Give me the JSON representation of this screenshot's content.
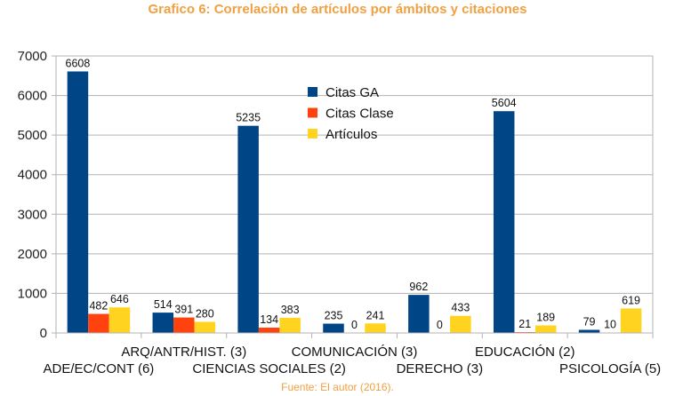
{
  "title": "Grafico 6: Correlación de artículos por ámbitos y citaciones",
  "source": "Fuente: El autor (2016).",
  "colors": {
    "citas_ga": "#004586",
    "citas_clase": "#ff420e",
    "articulos": "#ffd320",
    "title": "#f0a040"
  },
  "chart_data": {
    "type": "bar",
    "categories": [
      "ADE/EC/CONT (6)",
      "ARQ/ANTR/HIST. (3)",
      "CIENCIAS SOCIALES (2)",
      "COMUNICACIÓN (3)",
      "DERECHO (3)",
      "EDUCACIÓN (2)",
      "PSICOLOGÍA (5)"
    ],
    "series": [
      {
        "name": "Citas GA",
        "values": [
          6608,
          514,
          5235,
          235,
          962,
          5604,
          79
        ]
      },
      {
        "name": "Citas Clase",
        "values": [
          482,
          391,
          134,
          0,
          0,
          21,
          10
        ]
      },
      {
        "name": "Artículos",
        "values": [
          646,
          280,
          383,
          241,
          433,
          189,
          619
        ]
      }
    ],
    "ylim": [
      0,
      7000
    ],
    "yticks": [
      "0",
      "1000",
      "2000",
      "3000",
      "4000",
      "5000",
      "6000",
      "7000"
    ],
    "grid": "horizontal",
    "legend_position": "inside-top-center"
  }
}
